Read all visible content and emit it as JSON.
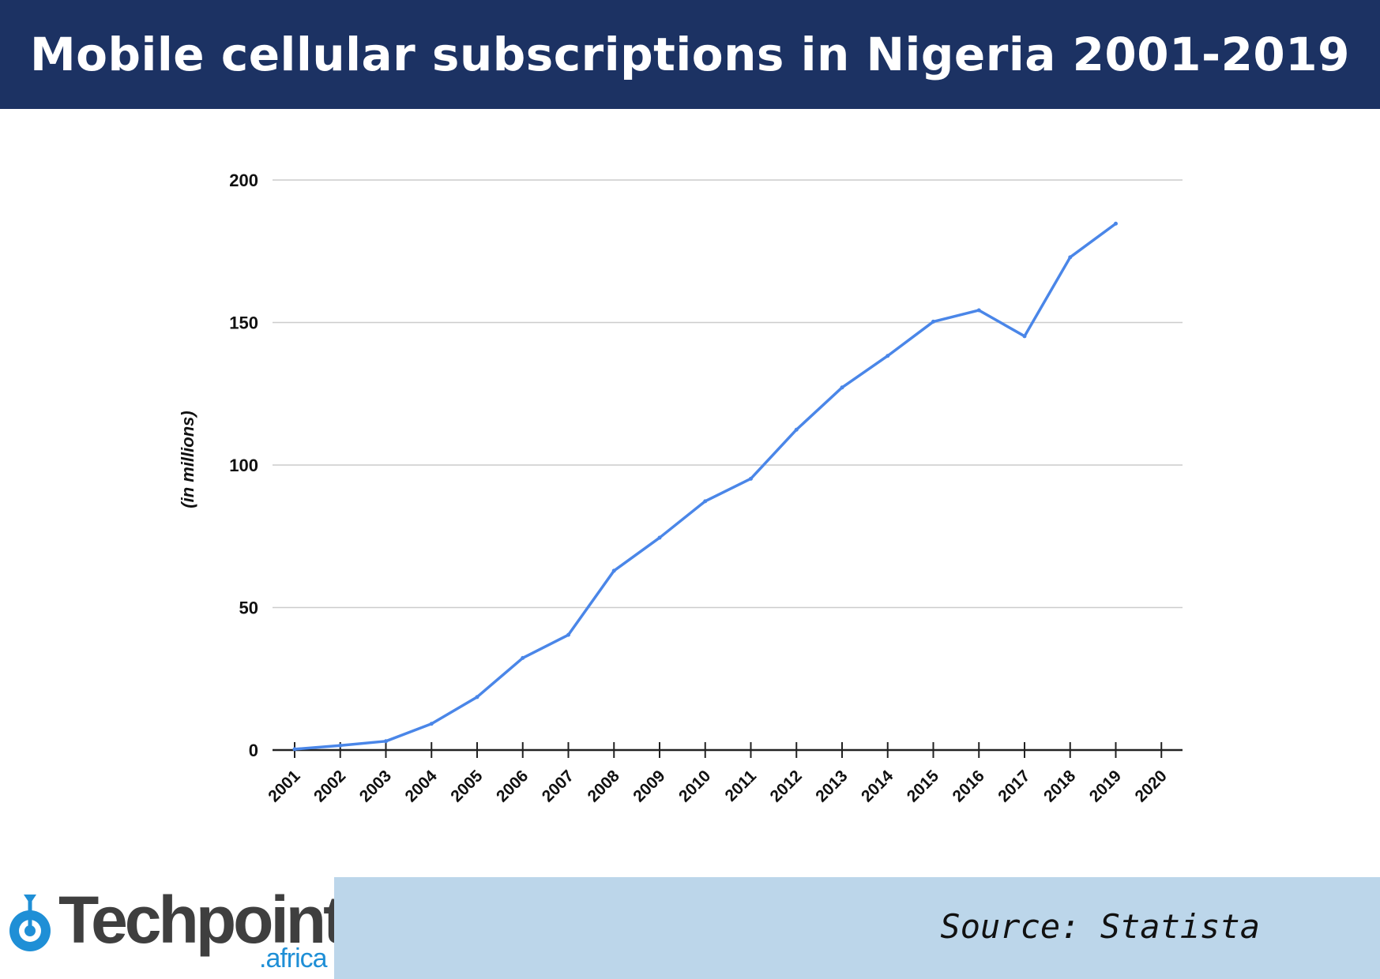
{
  "header": {
    "title": "Mobile cellular subscriptions in Nigeria 2001-2019"
  },
  "chart_data": {
    "type": "line",
    "title": "Mobile cellular subscriptions in Nigeria 2001-2019",
    "ylabel": "(in millions)",
    "xlabel": "",
    "ylim": [
      0,
      200
    ],
    "yticks": [
      "0",
      "50",
      "100",
      "150",
      "200"
    ],
    "categories": [
      "2001",
      "2002",
      "2003",
      "2004",
      "2005",
      "2006",
      "2007",
      "2008",
      "2009",
      "2010",
      "2011",
      "2012",
      "2013",
      "2014",
      "2015",
      "2016",
      "2017",
      "2018",
      "2019",
      "2020"
    ],
    "series": [
      {
        "color": "#4a86e8",
        "values": [
          0.3,
          1.6,
          3.1,
          9.2,
          18.6,
          32.3,
          40.4,
          62.9,
          74.5,
          87.3,
          95.2,
          112.4,
          127.2,
          138.3,
          150.3,
          154.3,
          145.2,
          172.9,
          184.7,
          null
        ]
      }
    ],
    "grid": true,
    "legend": "none"
  },
  "footer": {
    "logo": {
      "name": "Techpoint",
      "suffix": ".africa",
      "color": "#1f8fd6"
    },
    "source": "Source: Statista"
  }
}
